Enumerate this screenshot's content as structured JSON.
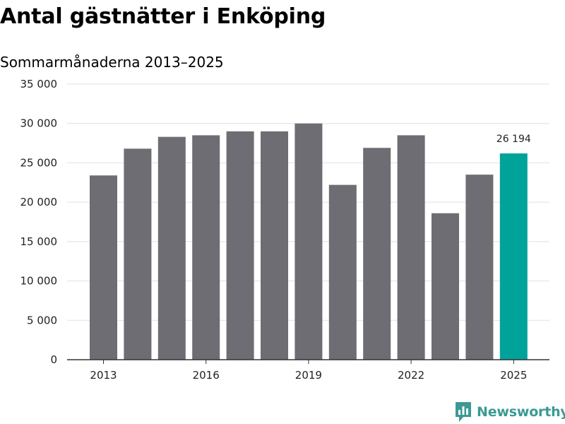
{
  "chart_data": {
    "type": "bar",
    "title": "Antal gästnätter i Enköping",
    "subtitle": "Sommarmånaderna 2013–2025",
    "xlabel": "",
    "ylabel": "",
    "categories": [
      "2013",
      "2014",
      "2015",
      "2016",
      "2017",
      "2018",
      "2019",
      "2020",
      "2021",
      "2022",
      "2023",
      "2024",
      "2025"
    ],
    "values": [
      23400,
      26800,
      28300,
      28500,
      29000,
      29000,
      30000,
      22200,
      26900,
      28500,
      18600,
      23500,
      26194
    ],
    "x_tick_labels": [
      "2013",
      "2016",
      "2019",
      "2022",
      "2025"
    ],
    "y_tick_labels": [
      "0",
      "5 000",
      "10 000",
      "15 000",
      "20 000",
      "25 000",
      "30 000",
      "35 000"
    ],
    "y_ticks": [
      0,
      5000,
      10000,
      15000,
      20000,
      25000,
      30000,
      35000
    ],
    "ylim": [
      0,
      35000
    ],
    "grid": true,
    "highlight": {
      "category": "2025",
      "label": "26 194"
    },
    "colors": {
      "bar": "#6e6d73",
      "highlight": "#00a39a",
      "grid": "#e1e1e1",
      "axis": "#333333"
    }
  },
  "brand": {
    "name": "Newsworthy",
    "icon": "newsworthy-logo-icon",
    "color": "#3a9a93"
  }
}
